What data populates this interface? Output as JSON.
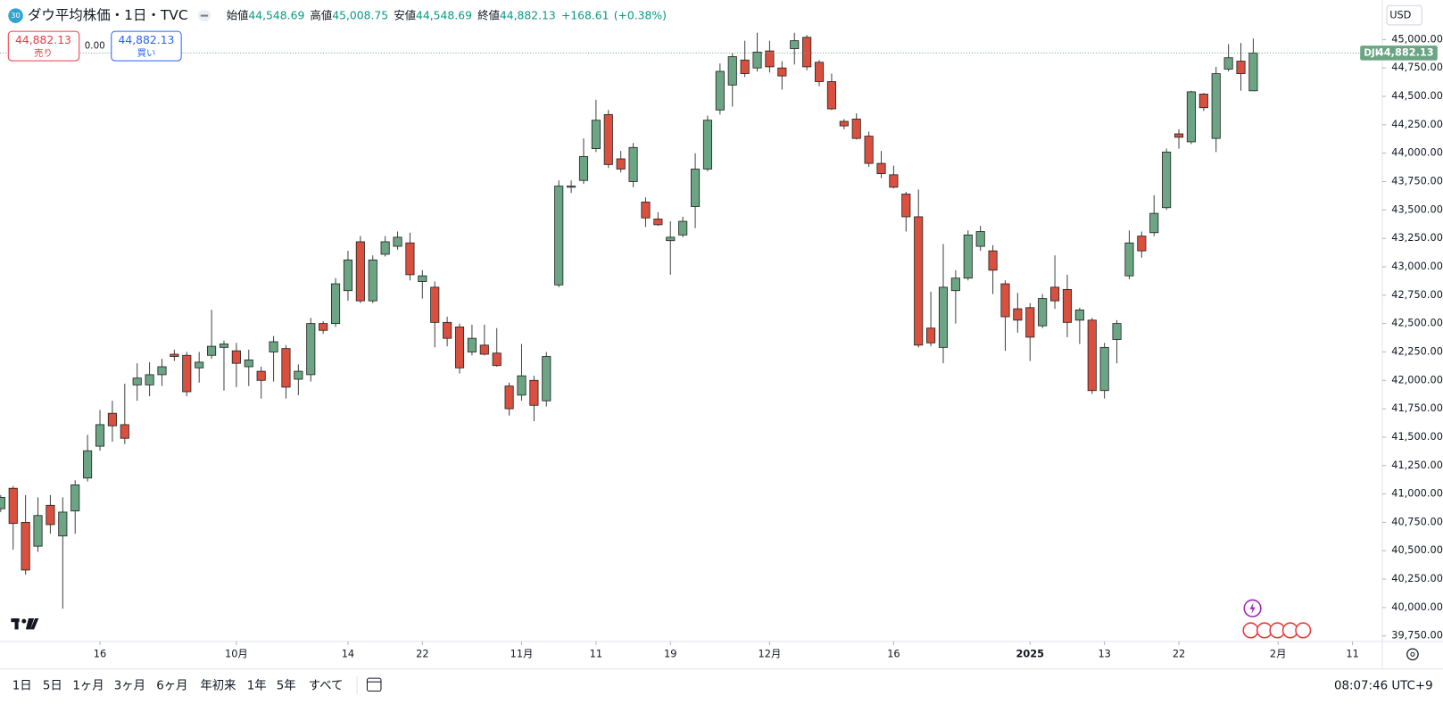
{
  "header": {
    "badge": "30",
    "title": "ダウ平均株価・1日・TVC",
    "open_label": "始値",
    "open": "44,548.69",
    "high_label": "高値",
    "high": "45,008.75",
    "low_label": "安値",
    "low": "44,548.69",
    "close_label": "終値",
    "close": "44,882.13",
    "change": "+168.61",
    "change_pct": "(+0.38%)"
  },
  "trade": {
    "sell_price": "44,882.13",
    "sell_label": "売り",
    "spread": "0.00",
    "buy_price": "44,882.13",
    "buy_label": "買い"
  },
  "currency": "USD",
  "toolbar": {
    "ranges": [
      "1日",
      "5日",
      "1ヶ月",
      "3ヶ月",
      "6ヶ月",
      "年初来",
      "1年",
      "5年",
      "すべて"
    ],
    "time": "08:07:46 UTC+9"
  },
  "chart_data": {
    "type": "candlestick",
    "symbol": "DJI",
    "up_color": "#6ba583",
    "down_color": "#d9503f",
    "border_color": "#222222",
    "grid": false,
    "last_price": {
      "value": 44882.13,
      "label": "44,882.13"
    },
    "open": [
      40870,
      41050,
      40750,
      40540,
      40900,
      40630,
      40850,
      41140,
      41420,
      41710,
      41610,
      41960,
      41960,
      42050,
      42230,
      42220,
      42110,
      42220,
      42290,
      42260,
      42120,
      42080,
      42250,
      42280,
      42010,
      42050,
      42500,
      42500,
      42790,
      43220,
      42700,
      43110,
      43180,
      43210,
      42870,
      42820,
      42510,
      42470,
      42250,
      42310,
      42240,
      41950,
      41870,
      42000,
      41820,
      42840,
      43700,
      43760,
      44040,
      44340,
      43950,
      43750,
      43570,
      43420,
      43230,
      43280,
      43530,
      43860,
      44380,
      44600,
      44820,
      44750,
      44900,
      44750,
      44920,
      45020,
      44800,
      44630,
      44280,
      44300,
      44150,
      43910,
      43810,
      43640,
      43440,
      42460,
      42290,
      42790,
      42900,
      43180,
      43140,
      42850,
      42630,
      42640,
      42480,
      42820,
      42800,
      42530,
      42530,
      41910,
      42360,
      42920,
      43270,
      43300,
      43520,
      44170,
      44100,
      44520,
      44130,
      44740,
      44810,
      44548.69
    ],
    "high": [
      40990,
      41070,
      40990,
      40970,
      40990,
      40970,
      41120,
      41520,
      41740,
      41820,
      41970,
      42150,
      42160,
      42190,
      42270,
      42250,
      42250,
      42620,
      42350,
      42330,
      42270,
      42120,
      42390,
      42310,
      42140,
      42550,
      42520,
      42900,
      43140,
      43270,
      43100,
      43270,
      43310,
      43300,
      42970,
      42870,
      42560,
      42500,
      42490,
      42490,
      42460,
      41980,
      42320,
      42040,
      42250,
      43760,
      43760,
      44130,
      44470,
      44380,
      44020,
      44090,
      43610,
      43480,
      43400,
      43440,
      44000,
      44330,
      44790,
      44880,
      44990,
      45060,
      44990,
      44810,
      45060,
      45040,
      44820,
      44700,
      44300,
      44350,
      44190,
      44020,
      43890,
      43660,
      43680,
      42780,
      43200,
      42970,
      43320,
      43360,
      43190,
      42880,
      42770,
      42680,
      42760,
      43100,
      42930,
      42640,
      42550,
      42330,
      42530,
      43320,
      43310,
      43630,
      44040,
      44210,
      44550,
      44530,
      44760,
      44960,
      44970,
      45008.75
    ],
    "low": [
      40840,
      40510,
      40290,
      40490,
      40650,
      39990,
      40650,
      41110,
      41380,
      41460,
      41440,
      41820,
      41860,
      41950,
      42170,
      41860,
      41980,
      42190,
      41910,
      41940,
      41950,
      41840,
      41990,
      41840,
      41870,
      41990,
      42410,
      42470,
      42700,
      42680,
      42680,
      43090,
      43150,
      42880,
      42720,
      42290,
      42300,
      42060,
      42220,
      42220,
      42120,
      41690,
      41820,
      41640,
      41770,
      42820,
      43650,
      43730,
      44010,
      43870,
      43830,
      43700,
      43350,
      43360,
      42930,
      43260,
      43340,
      43840,
      44340,
      44410,
      44670,
      44720,
      44710,
      44560,
      44780,
      44730,
      44590,
      44380,
      44210,
      44120,
      43880,
      43780,
      43690,
      43310,
      42290,
      42300,
      42150,
      42500,
      42880,
      43140,
      42760,
      42260,
      42420,
      42170,
      42460,
      42630,
      42380,
      42320,
      41880,
      41840,
      42150,
      42890,
      43080,
      43270,
      43500,
      44040,
      44080,
      44370,
      44010,
      44720,
      44550,
      44548.69
    ],
    "close": [
      40970,
      40740,
      40330,
      40810,
      40730,
      40840,
      41080,
      41380,
      41610,
      41600,
      41490,
      42020,
      42050,
      42120,
      42210,
      41900,
      42160,
      42300,
      42320,
      42150,
      42180,
      42000,
      42340,
      41940,
      42080,
      42500,
      42440,
      42850,
      43060,
      42700,
      43060,
      43220,
      43260,
      42930,
      42920,
      42510,
      42370,
      42110,
      42370,
      42230,
      42130,
      41750,
      42040,
      41780,
      42210,
      43710,
      43710,
      43970,
      44290,
      43900,
      43860,
      44050,
      43430,
      43370,
      43260,
      43400,
      43860,
      44290,
      44720,
      44850,
      44700,
      44890,
      44760,
      44680,
      44990,
      44760,
      44630,
      44390,
      44240,
      44130,
      43910,
      43820,
      43700,
      43440,
      42310,
      42330,
      42820,
      42900,
      43280,
      43310,
      42970,
      42560,
      42530,
      42380,
      42720,
      42700,
      42510,
      42620,
      41910,
      42290,
      42500,
      43210,
      43140,
      43470,
      44010,
      44140,
      44540,
      44400,
      44700,
      44840,
      44700,
      44882.13
    ],
    "xlim": [
      -0.06,
      111.4
    ],
    "xticks": [
      {
        "value": 8,
        "label": "16"
      },
      {
        "value": 19,
        "label": "10月"
      },
      {
        "value": 28,
        "label": "14"
      },
      {
        "value": 34,
        "label": "22"
      },
      {
        "value": 42,
        "label": "11月"
      },
      {
        "value": 48,
        "label": "11"
      },
      {
        "value": 54,
        "label": "19"
      },
      {
        "value": 62,
        "label": "12月"
      },
      {
        "value": 72,
        "label": "16"
      },
      {
        "value": 83,
        "label": "2025"
      },
      {
        "value": 89,
        "label": "13"
      },
      {
        "value": 95,
        "label": "22"
      },
      {
        "value": 103,
        "label": "2月"
      },
      {
        "value": 109,
        "label": "11"
      }
    ],
    "ylim": [
      39702,
      45348
    ],
    "yticks": [
      {
        "value": 39750,
        "label": "39,750.00"
      },
      {
        "value": 40000,
        "label": "40,000.00"
      },
      {
        "value": 40250,
        "label": "40,250.00"
      },
      {
        "value": 40500,
        "label": "40,500.00"
      },
      {
        "value": 40750,
        "label": "40,750.00"
      },
      {
        "value": 41000,
        "label": "41,000.00"
      },
      {
        "value": 41250,
        "label": "41,250.00"
      },
      {
        "value": 41500,
        "label": "41,500.00"
      },
      {
        "value": 41750,
        "label": "41,750.00"
      },
      {
        "value": 42000,
        "label": "42,000.00"
      },
      {
        "value": 42250,
        "label": "42,250.00"
      },
      {
        "value": 42500,
        "label": "42,500.00"
      },
      {
        "value": 42750,
        "label": "42,750.00"
      },
      {
        "value": 43000,
        "label": "43,000.00"
      },
      {
        "value": 43250,
        "label": "43,250.00"
      },
      {
        "value": 43500,
        "label": "43,500.00"
      },
      {
        "value": 43750,
        "label": "43,750.00"
      },
      {
        "value": 44000,
        "label": "44,000.00"
      },
      {
        "value": 44250,
        "label": "44,250.00"
      },
      {
        "value": 44500,
        "label": "44,500.00"
      },
      {
        "value": 44750,
        "label": "44,750.00"
      },
      {
        "value": 45000,
        "label": "45,000.00"
      }
    ]
  }
}
